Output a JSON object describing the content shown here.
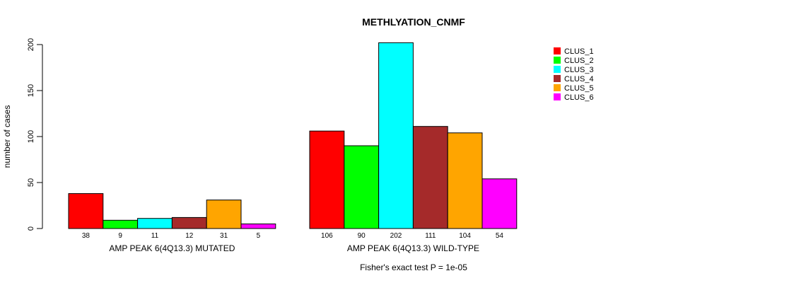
{
  "chart_data": {
    "type": "bar",
    "title": "METHLYATION_CNMF",
    "ylabel": "number of cases",
    "ylim": [
      0,
      200
    ],
    "yticks": [
      "0",
      "50",
      "100",
      "150",
      "200"
    ],
    "footer": "Fisher's exact test P = 1e-05",
    "groups": [
      {
        "label": "AMP PEAK  6(4Q13.3) MUTATED",
        "values": [
          38,
          9,
          11,
          12,
          31,
          5
        ],
        "value_labels": [
          "38",
          "9",
          "11",
          "12",
          "31",
          "5"
        ]
      },
      {
        "label": "AMP PEAK  6(4Q13.3) WILD-TYPE",
        "values": [
          106,
          90,
          202,
          111,
          104,
          54
        ],
        "value_labels": [
          "106",
          "90",
          "202",
          "111",
          "104",
          "54"
        ]
      }
    ],
    "series": [
      {
        "name": "CLUS_1",
        "color": "#ff0000"
      },
      {
        "name": "CLUS_2",
        "color": "#00ff00"
      },
      {
        "name": "CLUS_3",
        "color": "#00ffff"
      },
      {
        "name": "CLUS_4",
        "color": "#a52a2a"
      },
      {
        "name": "CLUS_5",
        "color": "#ffa500"
      },
      {
        "name": "CLUS_6",
        "color": "#ff00ff"
      }
    ],
    "legend": "top-right"
  }
}
